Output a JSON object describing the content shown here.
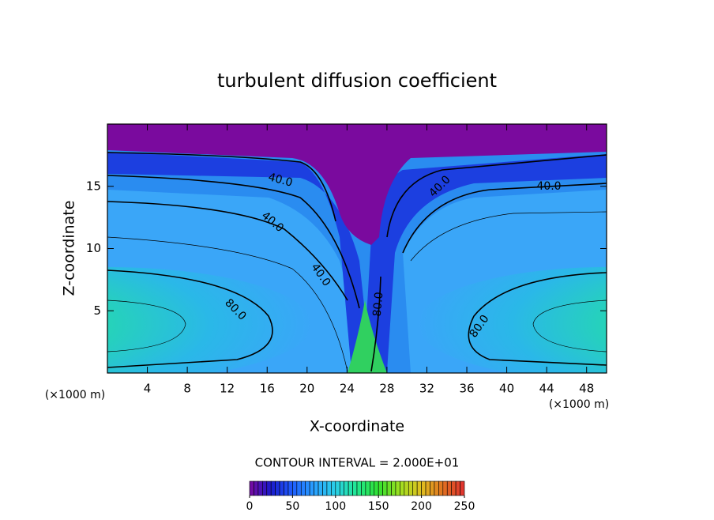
{
  "chart_data": {
    "type": "contour",
    "title": "turbulent diffusion coefficient",
    "x_label": "X-coordinate",
    "y_label": "Z-coordinate",
    "x_unit_label": "(×1000 m)",
    "y_unit_label": "(×1000 m)",
    "xlim": [
      0,
      50
    ],
    "xticks": [
      4,
      8,
      12,
      16,
      20,
      24,
      28,
      32,
      36,
      40,
      44,
      48
    ],
    "ylim": [
      0,
      20
    ],
    "yticks": [
      5,
      10,
      15
    ],
    "contour_labels": [
      "40.0",
      "40.0",
      "40.0",
      "40.0",
      "40.0",
      "80.0",
      "80.0",
      "80.0"
    ],
    "contour_interval_text": "CONTOUR INTERVAL = 2.000E+01",
    "colorbar": {
      "lim": [
        0,
        250
      ],
      "ticks": [
        0,
        50,
        100,
        150,
        200,
        250
      ],
      "colormap": [
        "#7a0a9e",
        "#1a1acc",
        "#1f5fff",
        "#2aa0ff",
        "#2ad0e8",
        "#20e890",
        "#30e030",
        "#a0e020",
        "#e0c020",
        "#e07020",
        "#e03030"
      ]
    }
  }
}
